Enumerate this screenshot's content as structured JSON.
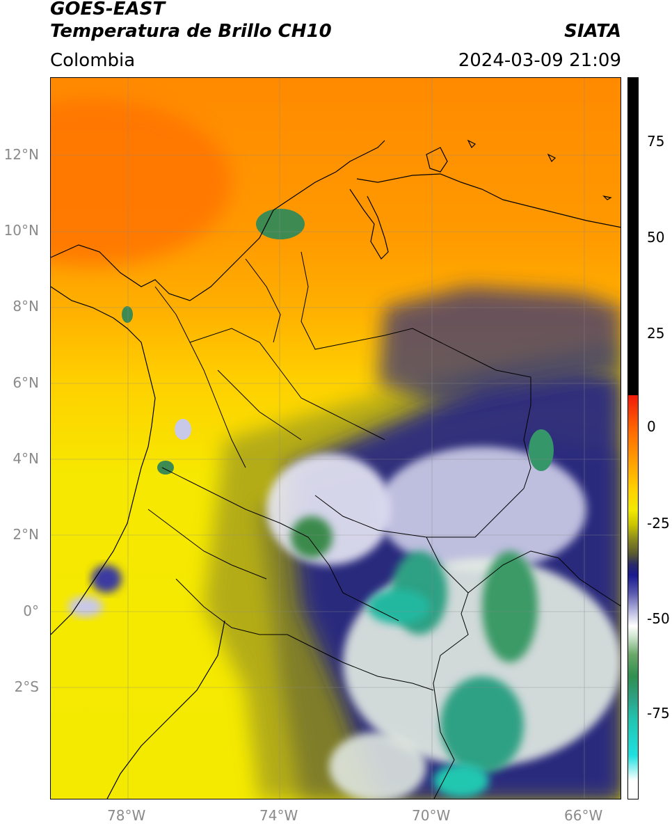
{
  "header": {
    "title_line1": "GOES-EAST",
    "title_line2": "Temperatura de Brillo CH10",
    "region": "Colombia",
    "org": "SIATA",
    "timestamp": "2024-03-09 21:09"
  },
  "axes": {
    "lat_ticks": [
      "12°N",
      "10°N",
      "8°N",
      "6°N",
      "4°N",
      "2°N",
      "0°",
      "2°S"
    ],
    "lon_ticks": [
      "78°W",
      "74°W",
      "70°W",
      "66°W"
    ]
  },
  "colorbar": {
    "ticks": [
      "75",
      "50",
      "25",
      "0",
      "-25",
      "-50",
      "-75"
    ],
    "colors": {
      "warm_black": "#000000",
      "red": "#f01a0a",
      "orange": "#ff9d00",
      "yellow": "#f2ea00",
      "olive": "#8a8a1e",
      "navy": "#1a1a90",
      "white": "#ffffff",
      "green": "#2f8f4f",
      "teal": "#22c4b0",
      "cyan": "#1fe0e0"
    }
  }
}
